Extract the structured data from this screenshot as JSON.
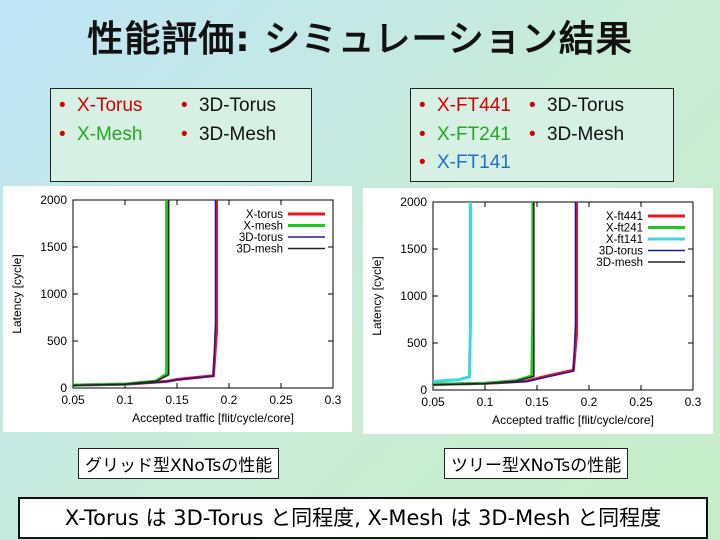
{
  "title": "性能評価: シミュレーション結果",
  "legend_left": {
    "items": [
      {
        "label": "X-Torus",
        "color": "#d40000"
      },
      {
        "label": "3D-Torus",
        "color": "#111111"
      },
      {
        "label": "X-Mesh",
        "color": "#22a822"
      },
      {
        "label": "3D-Mesh",
        "color": "#111111"
      }
    ]
  },
  "legend_right": {
    "items": [
      {
        "label": "X-FT441",
        "color": "#d40000"
      },
      {
        "label": "3D-Torus",
        "color": "#111111"
      },
      {
        "label": "X-FT241",
        "color": "#22a822"
      },
      {
        "label": "3D-Mesh",
        "color": "#111111"
      },
      {
        "label": "X-FT141",
        "color": "#1f6fd0"
      }
    ]
  },
  "captions": {
    "left": "グリッド型XNoTsの性能",
    "right": "ツリー型XNoTsの性能"
  },
  "conclusion": "X-Torus は 3D-Torus と同程度, X-Mesh は 3D-Mesh と同程度",
  "chart_data": [
    {
      "type": "line",
      "xlabel": "Accepted traffic [flit/cycle/core]",
      "ylabel": "Latency [cycle]",
      "xlim": [
        0.05,
        0.3
      ],
      "ylim": [
        0,
        2000
      ],
      "xticks": [
        "0.05",
        "0.1",
        "0.15",
        "0.2",
        "0.25",
        "0.3"
      ],
      "yticks": [
        "0",
        "500",
        "1000",
        "1500",
        "2000"
      ],
      "legend_position": "top-right",
      "series": [
        {
          "name": "X-torus",
          "color": "#e8161b",
          "width": 3,
          "x": [
            0.05,
            0.1,
            0.14,
            0.15,
            0.185,
            0.188,
            0.188
          ],
          "y": [
            30,
            40,
            70,
            90,
            130,
            600,
            2000
          ]
        },
        {
          "name": "X-mesh",
          "color": "#22c622",
          "width": 3,
          "x": [
            0.05,
            0.1,
            0.13,
            0.14,
            0.14,
            0.14
          ],
          "y": [
            30,
            42,
            75,
            150,
            800,
            2000
          ]
        },
        {
          "name": "3D-torus",
          "color": "#1a1aa8",
          "width": 1.5,
          "x": [
            0.05,
            0.1,
            0.14,
            0.15,
            0.185,
            0.187,
            0.187
          ],
          "y": [
            28,
            38,
            68,
            88,
            128,
            700,
            2000
          ]
        },
        {
          "name": "3D-mesh",
          "color": "#222222",
          "width": 1.5,
          "x": [
            0.05,
            0.1,
            0.13,
            0.142,
            0.142,
            0.142
          ],
          "y": [
            28,
            40,
            72,
            140,
            900,
            2000
          ]
        }
      ]
    },
    {
      "type": "line",
      "xlabel": "Accepted traffic [flit/cycle/core]",
      "ylabel": "Latency [cycle]",
      "xlim": [
        0.05,
        0.3
      ],
      "ylim": [
        0,
        2000
      ],
      "xticks": [
        "0.05",
        "0.1",
        "0.15",
        "0.2",
        "0.25",
        "0.3"
      ],
      "yticks": [
        "0",
        "500",
        "1000",
        "1500",
        "2000"
      ],
      "legend_position": "top-right",
      "series": [
        {
          "name": "X-ft441",
          "color": "#e8161b",
          "width": 3,
          "x": [
            0.05,
            0.1,
            0.14,
            0.16,
            0.185,
            0.188,
            0.188
          ],
          "y": [
            60,
            70,
            95,
            150,
            210,
            600,
            2000
          ]
        },
        {
          "name": "X-ft241",
          "color": "#22c622",
          "width": 3,
          "x": [
            0.05,
            0.1,
            0.13,
            0.145,
            0.146,
            0.146
          ],
          "y": [
            60,
            72,
            100,
            150,
            800,
            2000
          ]
        },
        {
          "name": "X-ft141",
          "color": "#38d8e0",
          "width": 3,
          "x": [
            0.05,
            0.075,
            0.085,
            0.086,
            0.086
          ],
          "y": [
            90,
            110,
            140,
            700,
            2000
          ]
        },
        {
          "name": "3D-torus",
          "color": "#1a1aa8",
          "width": 1.5,
          "x": [
            0.05,
            0.1,
            0.14,
            0.16,
            0.185,
            0.187,
            0.187
          ],
          "y": [
            55,
            68,
            90,
            140,
            200,
            700,
            2000
          ]
        },
        {
          "name": "3D-mesh",
          "color": "#222222",
          "width": 1.5,
          "x": [
            0.05,
            0.1,
            0.13,
            0.147,
            0.147,
            0.147
          ],
          "y": [
            55,
            68,
            95,
            145,
            900,
            2000
          ]
        }
      ]
    }
  ]
}
